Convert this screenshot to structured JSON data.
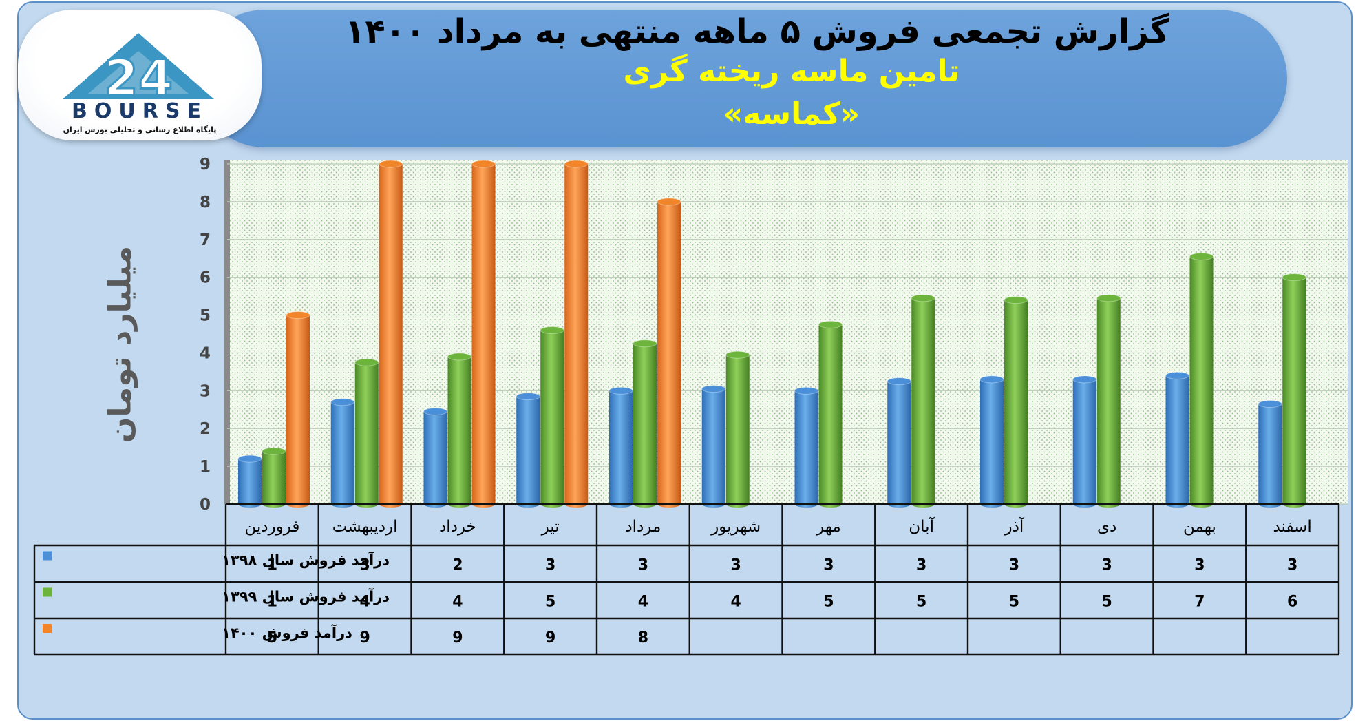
{
  "header": {
    "title": "گزارش تجمعی فروش ۵ ماهه منتهی به مرداد ۱۴۰۰",
    "company": "تامین ماسه ریخته گری",
    "symbol": "«کماسه»"
  },
  "logo": {
    "brand": "BOURSE",
    "tagline": "پایگاه اطلاع رسانی و تحلیلی بورس ایران"
  },
  "colors": {
    "series_1398": "#4a8fd8",
    "series_1399": "#6cb43c",
    "series_1400": "#f2852a"
  },
  "chart_data": {
    "type": "bar",
    "ylabel": "میلیارد تومان",
    "ylim": [
      0,
      9
    ],
    "yticks": [
      "0",
      "1",
      "2",
      "3",
      "4",
      "5",
      "6",
      "7",
      "8",
      "9"
    ],
    "grid": true,
    "categories": [
      "فروردین",
      "اردیبهشت",
      "خرداد",
      "تیر",
      "مرداد",
      "شهریور",
      "مهر",
      "آبان",
      "آذر",
      "دی",
      "بهمن",
      "اسفند"
    ],
    "series": [
      {
        "name": "درآمد فروش سال ۱۳۹۸",
        "values": [
          1.2,
          2.7,
          2.45,
          2.85,
          3.0,
          3.05,
          3.0,
          3.25,
          3.3,
          3.3,
          3.4,
          2.65
        ],
        "labels": [
          "1",
          "3",
          "2",
          "3",
          "3",
          "3",
          "3",
          "3",
          "3",
          "3",
          "3",
          "3"
        ]
      },
      {
        "name": "درآمد فروش سال ۱۳۹۹",
        "values": [
          1.4,
          3.75,
          3.9,
          4.6,
          4.25,
          3.95,
          4.75,
          5.45,
          5.4,
          5.45,
          6.55,
          6.0
        ],
        "labels": [
          "1",
          "4",
          "4",
          "5",
          "4",
          "4",
          "5",
          "5",
          "5",
          "5",
          "7",
          "6"
        ]
      },
      {
        "name": "درآمد فروش ۱۴۰۰",
        "values": [
          5.0,
          9.0,
          9.0,
          9.0,
          8.0,
          null,
          null,
          null,
          null,
          null,
          null,
          null
        ],
        "labels": [
          "5",
          "9",
          "9",
          "9",
          "8",
          "",
          "",
          "",
          "",
          "",
          "",
          ""
        ]
      }
    ]
  }
}
